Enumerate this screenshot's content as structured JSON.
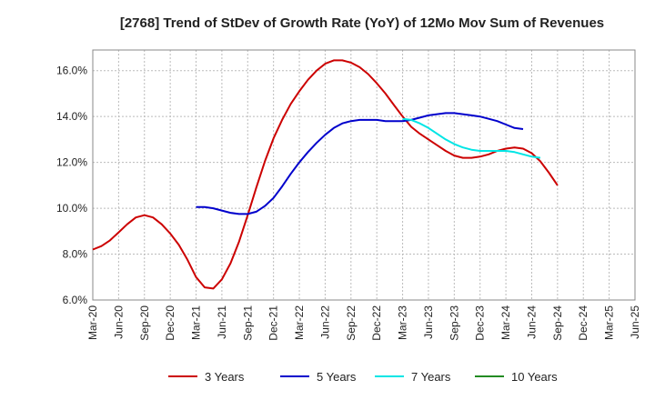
{
  "chart_data": {
    "type": "line",
    "title": "[2768]  Trend of StDev of Growth Rate (YoY) of 12Mo Mov Sum of Revenues",
    "xlabel": "",
    "ylabel": "",
    "x_ticks": [
      "Mar-20",
      "Jun-20",
      "Sep-20",
      "Dec-20",
      "Mar-21",
      "Jun-21",
      "Sep-21",
      "Dec-21",
      "Mar-22",
      "Jun-22",
      "Sep-22",
      "Dec-22",
      "Mar-23",
      "Jun-23",
      "Sep-23",
      "Dec-23",
      "Mar-24",
      "Jun-24",
      "Sep-24",
      "Dec-24",
      "Mar-25",
      "Jun-25"
    ],
    "y_ticks": [
      "6.0%",
      "8.0%",
      "10.0%",
      "12.0%",
      "14.0%",
      "16.0%"
    ],
    "y_tick_values": [
      6,
      8,
      10,
      12,
      14,
      16
    ],
    "ylim": [
      6.0,
      16.9
    ],
    "x_range": [
      0,
      63
    ],
    "grid": true,
    "legend_position": "bottom",
    "series": [
      {
        "name": "3 Years",
        "color": "#cc0000",
        "x": [
          0,
          1,
          2,
          3,
          4,
          5,
          6,
          7,
          8,
          9,
          10,
          11,
          12,
          13,
          14,
          15,
          16,
          17,
          18,
          19,
          20,
          21,
          22,
          23,
          24,
          25,
          26,
          27,
          28,
          29,
          30,
          31,
          32,
          33,
          34,
          35,
          36,
          37,
          38,
          39,
          40,
          41,
          42,
          43,
          44,
          45,
          46,
          47,
          48,
          49,
          50,
          51,
          52,
          53,
          54,
          55,
          56,
          57,
          58,
          59,
          60
        ],
        "values": [
          8.2,
          8.35,
          8.6,
          8.95,
          9.3,
          9.6,
          9.7,
          9.6,
          9.3,
          8.9,
          8.4,
          7.75,
          7.0,
          6.55,
          6.5,
          6.9,
          7.6,
          8.55,
          9.7,
          10.9,
          12.05,
          13.05,
          13.85,
          14.55,
          15.1,
          15.6,
          16.0,
          16.3,
          16.45,
          16.45,
          16.35,
          16.15,
          15.85,
          15.45,
          15.0,
          14.5,
          14.0,
          13.55,
          13.25,
          13.0,
          12.75,
          12.5,
          12.3,
          12.2,
          12.2,
          12.25,
          12.35,
          12.5,
          12.6,
          12.65,
          12.6,
          12.4,
          12.05,
          11.55,
          11.0,
          null,
          null,
          null,
          null,
          null,
          null
        ]
      },
      {
        "name": "5 Years",
        "color": "#0000cc",
        "x": [
          12,
          13,
          14,
          15,
          16,
          17,
          18,
          19,
          20,
          21,
          22,
          23,
          24,
          25,
          26,
          27,
          28,
          29,
          30,
          31,
          32,
          33,
          34,
          35,
          36,
          37,
          38,
          39,
          40,
          41,
          42,
          43,
          44,
          45,
          46,
          47,
          48,
          49,
          50,
          51,
          52,
          53,
          54,
          55,
          56,
          57,
          58,
          59,
          60
        ],
        "values": [
          10.05,
          10.05,
          10.0,
          9.9,
          9.8,
          9.75,
          9.75,
          9.85,
          10.1,
          10.45,
          10.95,
          11.5,
          12.0,
          12.45,
          12.85,
          13.2,
          13.5,
          13.7,
          13.8,
          13.85,
          13.85,
          13.85,
          13.8,
          13.8,
          13.8,
          13.85,
          13.95,
          14.05,
          14.1,
          14.15,
          14.15,
          14.1,
          14.05,
          14.0,
          13.9,
          13.8,
          13.65,
          13.5,
          13.45,
          null,
          null,
          null,
          null,
          null,
          null,
          null,
          null,
          null,
          null
        ]
      },
      {
        "name": "7 Years",
        "color": "#00e5e5",
        "x": [
          36,
          37,
          38,
          39,
          40,
          41,
          42,
          43,
          44,
          45,
          46,
          47,
          48,
          49,
          50,
          51,
          52,
          53,
          54,
          55,
          56,
          57,
          58,
          59,
          60
        ],
        "values": [
          13.9,
          13.85,
          13.7,
          13.5,
          13.25,
          13.0,
          12.8,
          12.65,
          12.55,
          12.5,
          12.5,
          12.5,
          12.5,
          12.45,
          12.35,
          12.25,
          12.2,
          null,
          null,
          null,
          null,
          null,
          null,
          null,
          null
        ]
      },
      {
        "name": "10 Years",
        "color": "#228b22",
        "x": [],
        "values": []
      }
    ]
  }
}
